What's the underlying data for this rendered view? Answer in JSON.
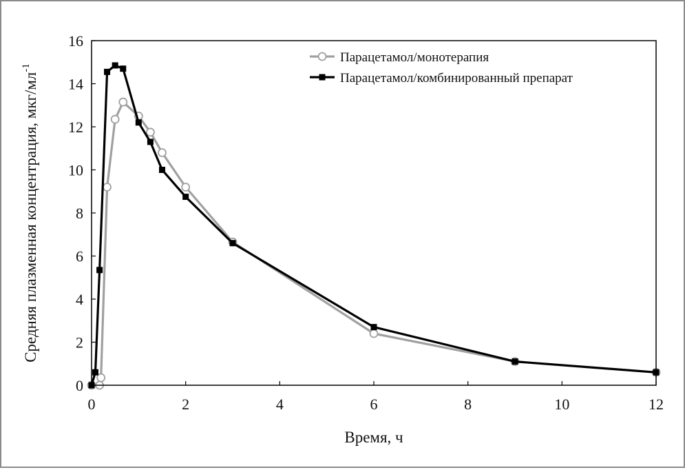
{
  "chart_data": {
    "type": "line",
    "title": "",
    "xlabel": "Время, ч",
    "ylabel": "Средняя плазменная концентрация, мкг/мл",
    "ylabel_superscript": "-1",
    "xlim": [
      0,
      12
    ],
    "ylim": [
      0,
      16
    ],
    "xticks": [
      0,
      2,
      4,
      6,
      8,
      10,
      12
    ],
    "yticks": [
      0,
      2,
      4,
      6,
      8,
      10,
      12,
      14,
      16
    ],
    "grid": false,
    "legend_position": "top-right",
    "series": [
      {
        "name": "Парацетамол/монотерапия",
        "color": "#a0a0a0",
        "marker": "open-circle",
        "x": [
          0,
          0.17,
          0.2,
          0.33,
          0.5,
          0.67,
          1.0,
          1.25,
          1.5,
          2.0,
          3.0,
          6.0,
          9.0,
          12.0
        ],
        "y": [
          0,
          0,
          0.35,
          9.2,
          12.35,
          13.15,
          12.5,
          11.75,
          10.8,
          9.2,
          6.65,
          2.4,
          1.1,
          0.6
        ]
      },
      {
        "name": "Парацетамол/комбинированный препарат",
        "color": "#000000",
        "marker": "filled-square",
        "x": [
          0,
          0.08,
          0.17,
          0.33,
          0.5,
          0.67,
          1.0,
          1.25,
          1.5,
          2.0,
          3.0,
          6.0,
          9.0,
          12.0
        ],
        "y": [
          0,
          0.6,
          5.35,
          14.55,
          14.85,
          14.7,
          12.2,
          11.3,
          10.0,
          8.75,
          6.6,
          2.7,
          1.1,
          0.6
        ]
      }
    ]
  }
}
